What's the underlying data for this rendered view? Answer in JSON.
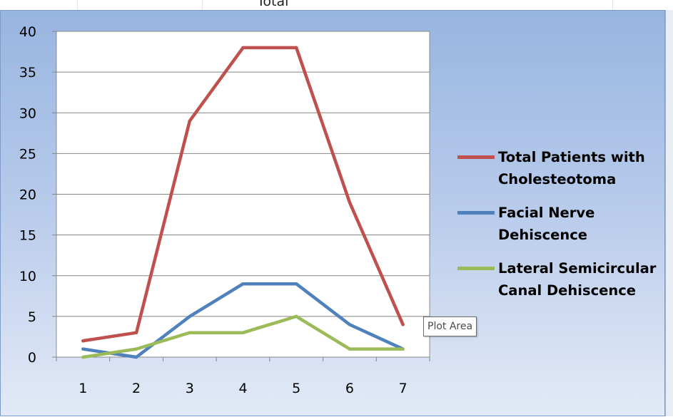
{
  "sheet": {
    "title_fragment": "Total"
  },
  "tooltip": {
    "text": "Plot Area"
  },
  "colors": {
    "background_top": "#98b5e0",
    "background_bottom": "#e2eaf7"
  },
  "chart_data": {
    "type": "line",
    "title": "",
    "xlabel": "",
    "ylabel": "",
    "x": [
      1,
      2,
      3,
      4,
      5,
      6,
      7
    ],
    "ylim": [
      0,
      40
    ],
    "yticks": [
      0,
      5,
      10,
      15,
      20,
      25,
      30,
      35,
      40
    ],
    "grid": "horizontal",
    "legend_position": "right",
    "series": [
      {
        "name": "Total Patients with Cholesteotoma",
        "color": "#c0504d",
        "values": [
          2,
          3,
          29,
          38,
          38,
          19,
          4
        ]
      },
      {
        "name": "Facial Nerve Dehiscence",
        "color": "#4f81bd",
        "values": [
          1,
          0,
          5,
          9,
          9,
          4,
          1
        ]
      },
      {
        "name": "Lateral Semicircular Canal Dehiscence",
        "color": "#9bbb59",
        "values": [
          0,
          1,
          3,
          3,
          5,
          1,
          1
        ]
      }
    ]
  }
}
